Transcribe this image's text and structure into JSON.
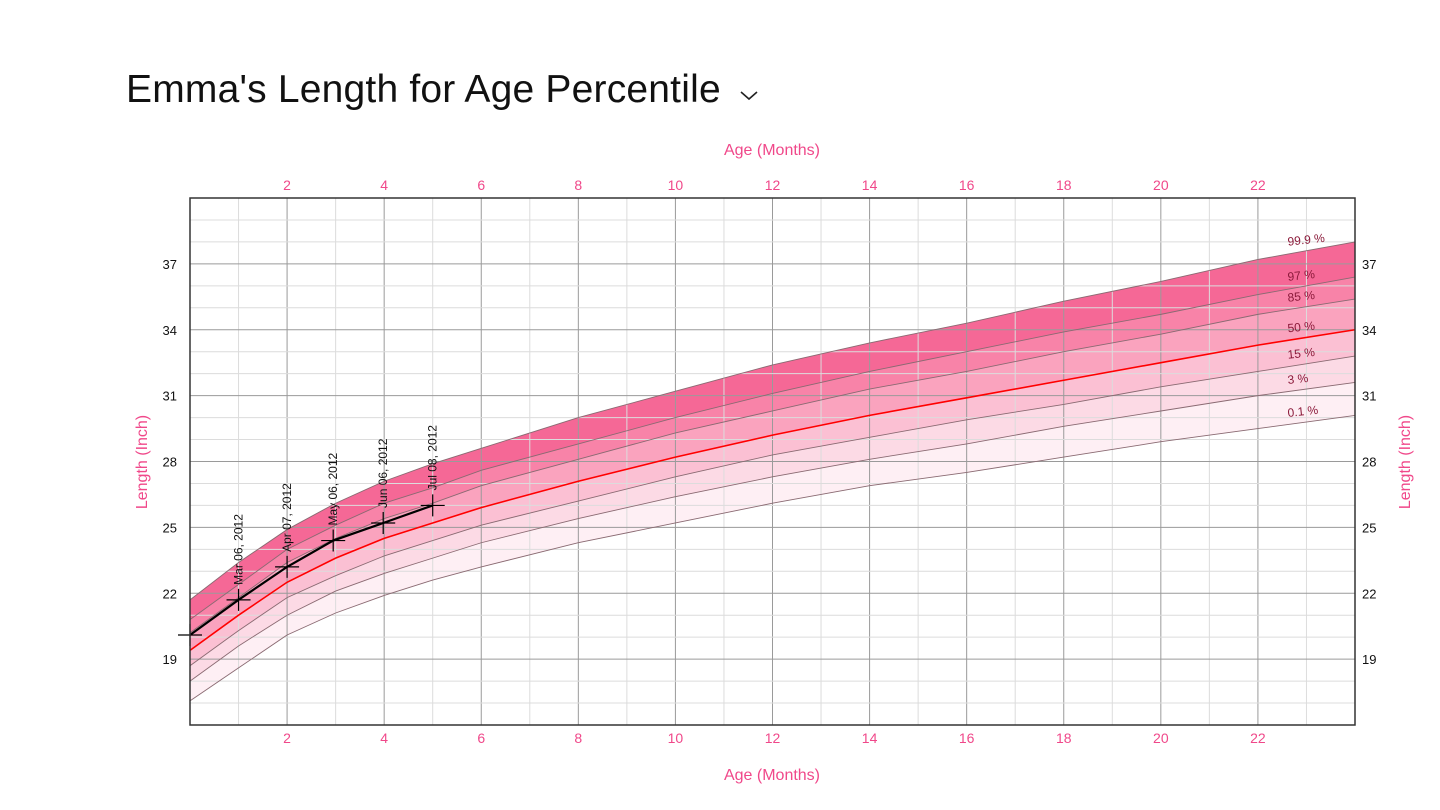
{
  "header": {
    "title": "Emma's Length for Age Percentile",
    "dropdown_icon": "chevron-down-icon"
  },
  "chart_data": {
    "type": "line",
    "title": "Emma's Length for Age Percentile",
    "xlabel": "Age (Months)",
    "ylabel": "Length (Inch)",
    "xlim": [
      0,
      24
    ],
    "ylim": [
      16,
      40
    ],
    "xticks": [
      2,
      4,
      6,
      8,
      10,
      12,
      14,
      16,
      18,
      20,
      22
    ],
    "yticks": [
      19,
      22,
      25,
      28,
      31,
      34,
      37
    ],
    "grid": true,
    "x": [
      0,
      1,
      2,
      3,
      4,
      5,
      6,
      8,
      10,
      12,
      14,
      16,
      18,
      20,
      22,
      24
    ],
    "percentiles": [
      {
        "name": "99.9 %",
        "values": [
          21.7,
          23.4,
          24.9,
          26.1,
          27.1,
          27.9,
          28.6,
          30.0,
          31.2,
          32.4,
          33.4,
          34.3,
          35.3,
          36.2,
          37.2,
          38.0
        ],
        "band_color": "#f4588b"
      },
      {
        "name": "97 %",
        "values": [
          20.8,
          22.4,
          24.0,
          25.1,
          26.1,
          26.8,
          27.6,
          28.8,
          30.0,
          31.1,
          32.1,
          33.0,
          33.9,
          34.7,
          35.6,
          36.4
        ],
        "band_color": "#f7769f"
      },
      {
        "name": "85 %",
        "values": [
          20.2,
          21.8,
          23.4,
          24.5,
          25.4,
          26.1,
          26.9,
          28.1,
          29.3,
          30.3,
          31.3,
          32.1,
          33.0,
          33.8,
          34.7,
          35.4
        ],
        "band_color": "#f999b7"
      },
      {
        "name": "50 %",
        "values": [
          19.4,
          21.0,
          22.5,
          23.6,
          24.5,
          25.2,
          25.9,
          27.1,
          28.2,
          29.2,
          30.1,
          30.9,
          31.7,
          32.5,
          33.3,
          34.0
        ],
        "band_color": "#fbb9ce"
      },
      {
        "name": "15 %",
        "values": [
          18.7,
          20.3,
          21.8,
          22.8,
          23.7,
          24.4,
          25.1,
          26.2,
          27.3,
          28.3,
          29.1,
          29.9,
          30.6,
          31.4,
          32.1,
          32.8
        ],
        "band_color": "#fcd6e2"
      },
      {
        "name": "3 %",
        "values": [
          18.0,
          19.6,
          21.0,
          22.1,
          22.9,
          23.6,
          24.3,
          25.4,
          26.4,
          27.3,
          28.1,
          28.8,
          29.6,
          30.3,
          31.0,
          31.6
        ],
        "band_color": "#feedf3"
      },
      {
        "name": "0.1 %",
        "values": [
          17.1,
          18.6,
          20.1,
          21.1,
          21.9,
          22.6,
          23.2,
          24.3,
          25.2,
          26.1,
          26.9,
          27.5,
          28.2,
          28.9,
          29.5,
          30.1
        ]
      }
    ],
    "median_color": "#ff0000",
    "series": [
      {
        "name": "Emma",
        "color": "#000000",
        "points": [
          {
            "x": 0,
            "y": 20.1,
            "label": ""
          },
          {
            "x": 1.0,
            "y": 21.7,
            "label": "Mar 06, 2012"
          },
          {
            "x": 2.0,
            "y": 23.2,
            "label": "Apr 07, 2012"
          },
          {
            "x": 2.95,
            "y": 24.4,
            "label": "May 06, 2012"
          },
          {
            "x": 3.98,
            "y": 25.2,
            "label": "Jun 06, 2012"
          },
          {
            "x": 5.0,
            "y": 26.0,
            "label": "Jul 08, 2012"
          }
        ]
      }
    ],
    "accent_color": "#f0488a"
  }
}
